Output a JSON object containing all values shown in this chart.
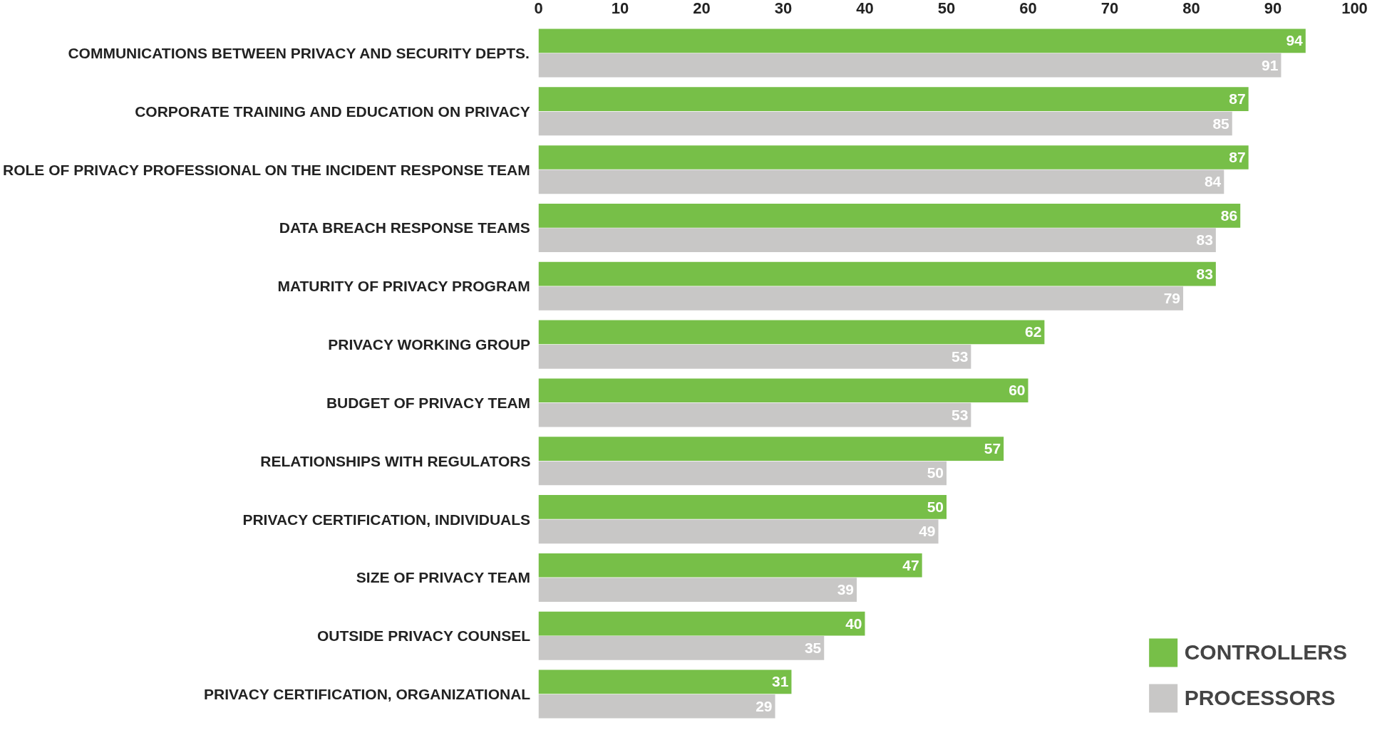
{
  "chart_data": {
    "type": "bar",
    "orientation": "horizontal",
    "categories": [
      "COMMUNICATIONS BETWEEN PRIVACY AND SECURITY DEPTS.",
      "CORPORATE TRAINING AND EDUCATION ON PRIVACY",
      "ROLE OF PRIVACY PROFESSIONAL ON THE INCIDENT RESPONSE TEAM",
      "DATA BREACH RESPONSE TEAMS",
      "MATURITY OF PRIVACY PROGRAM",
      "PRIVACY WORKING GROUP",
      "BUDGET OF PRIVACY TEAM",
      "RELATIONSHIPS WITH REGULATORS",
      "PRIVACY CERTIFICATION, INDIVIDUALS",
      "SIZE OF PRIVACY TEAM",
      "OUTSIDE PRIVACY COUNSEL",
      "PRIVACY CERTIFICATION, ORGANIZATIONAL"
    ],
    "series": [
      {
        "name": "CONTROLLERS",
        "color": "#77bf48",
        "values": [
          94,
          87,
          87,
          86,
          83,
          62,
          60,
          57,
          50,
          47,
          40,
          31
        ]
      },
      {
        "name": "PROCESSORS",
        "color": "#c8c7c6",
        "values": [
          91,
          85,
          84,
          83,
          79,
          53,
          53,
          50,
          49,
          39,
          35,
          29
        ]
      }
    ],
    "xlim": [
      0,
      100
    ],
    "xticks": [
      0,
      10,
      20,
      30,
      40,
      50,
      60,
      70,
      80,
      90,
      100
    ],
    "data_labels": true,
    "grid": false,
    "legend": "bottom right"
  }
}
